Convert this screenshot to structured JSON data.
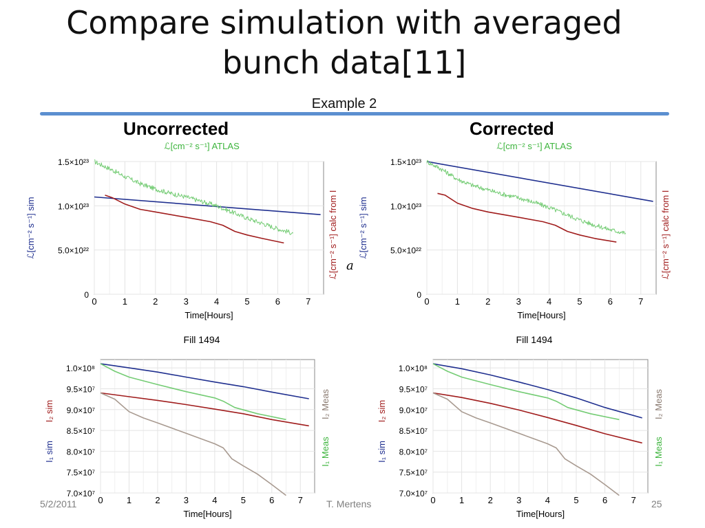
{
  "slide": {
    "title_line1": "Compare simulation with averaged",
    "title_line2": "bunch data[11]",
    "subtitle": "Example 2",
    "left_heading": "Uncorrected",
    "right_heading": "Corrected",
    "footer_date": "5/2/2011",
    "footer_author": "T. Mertens",
    "footer_page": "25",
    "stray_glyph": "a",
    "rule_color": "#5b8fd0"
  },
  "chart_data": [
    {
      "id": "lumi-uncorrected",
      "type": "line",
      "top_label": "ℒ[cm⁻² s⁻¹] ATLAS",
      "left_axis_label": "ℒ[cm⁻² s⁻¹] sim",
      "right_axis_label": "ℒ[cm⁻² s⁻¹] calc from I",
      "xlabel": "Time[Hours]",
      "caption": "Fill 1494",
      "xlim": [
        0,
        7.5
      ],
      "ylim": [
        0,
        1.5e+23
      ],
      "xticks": [
        "0",
        "1",
        "2",
        "3",
        "4",
        "5",
        "6",
        "7"
      ],
      "yticks": [
        {
          "value": 0,
          "label": "0"
        },
        {
          "value": 5e+22,
          "label": "5.0×10²²"
        },
        {
          "value": 1e+23,
          "label": "1.0×10²³"
        },
        {
          "value": 1.5e+23,
          "label": "1.5×10²³"
        }
      ],
      "grid": true,
      "series": [
        {
          "key": "sim",
          "color": "#1f2f8f",
          "noisy": false,
          "x": [
            0,
            7.4
          ],
          "y": [
            1.1e+23,
            9e+22
          ]
        },
        {
          "key": "calc",
          "color": "#a01c1c",
          "noisy": false,
          "x": [
            0.35,
            0.6,
            1.0,
            1.5,
            2.0,
            3.0,
            3.8,
            4.2,
            4.6,
            5.0,
            5.5,
            6.2
          ],
          "y": [
            1.12e+23,
            1.09e+23,
            1.02e+23,
            9.6e+22,
            9.3e+22,
            8.7e+22,
            8.2e+22,
            7.8e+22,
            7.1e+22,
            6.7e+22,
            6.3e+22,
            5.8e+22
          ]
        },
        {
          "key": "atlas",
          "color": "#74cc74",
          "noisy": true,
          "x": [
            0,
            0.5,
            1.0,
            1.5,
            2.0,
            2.5,
            3.0,
            3.5,
            4.0,
            4.5,
            5.0,
            5.5,
            6.0,
            6.5
          ],
          "y": [
            1.5e+23,
            1.42e+23,
            1.33e+23,
            1.25e+23,
            1.19e+23,
            1.14e+23,
            1.1e+23,
            1.05e+23,
            1e+23,
            9.3e+22,
            8.6e+22,
            8e+22,
            7.4e+22,
            6.9e+22
          ]
        }
      ]
    },
    {
      "id": "lumi-corrected",
      "type": "line",
      "top_label": "ℒ[cm⁻² s⁻¹] ATLAS",
      "left_axis_label": "ℒ[cm⁻² s⁻¹] sim",
      "right_axis_label": "ℒ[cm⁻² s⁻¹] calc from I",
      "xlabel": "Time[Hours]",
      "caption": "Fill 1494",
      "xlim": [
        0,
        7.5
      ],
      "ylim": [
        0,
        1.5e+23
      ],
      "xticks": [
        "0",
        "1",
        "2",
        "3",
        "4",
        "5",
        "6",
        "7"
      ],
      "yticks": [
        {
          "value": 0,
          "label": "0"
        },
        {
          "value": 5e+22,
          "label": "5.0×10²²"
        },
        {
          "value": 1e+23,
          "label": "1.0×10²³"
        },
        {
          "value": 1.5e+23,
          "label": "1.5×10²³"
        }
      ],
      "grid": true,
      "series": [
        {
          "key": "sim",
          "color": "#1f2f8f",
          "noisy": false,
          "x": [
            0,
            7.4
          ],
          "y": [
            1.5e+23,
            1.05e+23
          ]
        },
        {
          "key": "calc",
          "color": "#a01c1c",
          "noisy": false,
          "x": [
            0.35,
            0.6,
            1.0,
            1.5,
            2.0,
            3.0,
            3.8,
            4.2,
            4.6,
            5.0,
            5.5,
            6.2
          ],
          "y": [
            1.14e+23,
            1.12e+23,
            1.03e+23,
            9.7e+22,
            9.3e+22,
            8.7e+22,
            8.2e+22,
            7.8e+22,
            7.1e+22,
            6.7e+22,
            6.3e+22,
            5.9e+22
          ]
        },
        {
          "key": "atlas",
          "color": "#74cc74",
          "noisy": true,
          "x": [
            0,
            0.5,
            1.0,
            1.5,
            2.0,
            2.5,
            3.0,
            3.5,
            4.0,
            4.5,
            5.0,
            5.5,
            6.0,
            6.5
          ],
          "y": [
            1.5e+23,
            1.41e+23,
            1.3e+23,
            1.23e+23,
            1.18e+23,
            1.13e+23,
            1.09e+23,
            1.04e+23,
            9.8e+22,
            9.1e+22,
            8.4e+22,
            7.8e+22,
            7.3e+22,
            6.9e+22
          ]
        }
      ]
    },
    {
      "id": "intensity-uncorrected",
      "type": "line",
      "left_axis_label_1": "I₁ sim",
      "left_axis_label_2": "I₂ sim",
      "right_axis_label_1": "I₁ Meas",
      "right_axis_label_2": "I₂ Meas",
      "xlabel": "Time[Hours]",
      "xlim": [
        0,
        7.5
      ],
      "ylim": [
        70000000.0,
        102000000.0
      ],
      "xticks": [
        "0",
        "1",
        "2",
        "3",
        "4",
        "5",
        "6",
        "7"
      ],
      "yticks": [
        {
          "value": 70000000.0,
          "label": "7.0×10⁷"
        },
        {
          "value": 75000000.0,
          "label": "7.5×10⁷"
        },
        {
          "value": 80000000.0,
          "label": "8.0×10⁷"
        },
        {
          "value": 85000000.0,
          "label": "8.5×10⁷"
        },
        {
          "value": 90000000.0,
          "label": "9.0×10⁷"
        },
        {
          "value": 95000000.0,
          "label": "9.5×10⁷"
        },
        {
          "value": 100000000.0,
          "label": "1.0×10⁸"
        }
      ],
      "grid": true,
      "series": [
        {
          "key": "i1sim",
          "color": "#1f2f8f",
          "x": [
            0,
            1,
            2,
            3,
            4,
            5,
            6,
            7.3
          ],
          "y": [
            101000000.0,
            100000000.0,
            99000000.0,
            97800000.0,
            96600000.0,
            95500000.0,
            94200000.0,
            92600000.0
          ]
        },
        {
          "key": "i1meas",
          "color": "#74cc74",
          "x": [
            0,
            0.5,
            1,
            2,
            3,
            4,
            4.3,
            4.7,
            5.5,
            6.5
          ],
          "y": [
            101000000.0,
            99200000.0,
            97800000.0,
            96000000.0,
            94300000.0,
            92800000.0,
            92000000.0,
            90500000.0,
            89000000.0,
            87600000.0
          ]
        },
        {
          "key": "i2sim",
          "color": "#a01c1c",
          "x": [
            0,
            1,
            2,
            3,
            4,
            5,
            6,
            7.3
          ],
          "y": [
            94000000.0,
            93100000.0,
            92200000.0,
            91200000.0,
            90100000.0,
            89000000.0,
            87600000.0,
            86100000.0
          ]
        },
        {
          "key": "i2meas",
          "color": "#a89a90",
          "x": [
            0,
            0.5,
            1,
            1.5,
            2,
            3,
            4,
            4.3,
            4.6,
            5,
            5.5,
            6,
            6.5
          ],
          "y": [
            94000000.0,
            92500000.0,
            89500000.0,
            88000000.0,
            86800000.0,
            84300000.0,
            81800000.0,
            80800000.0,
            78200000.0,
            76500000.0,
            74500000.0,
            72000000.0,
            69400000.0
          ]
        }
      ]
    },
    {
      "id": "intensity-corrected",
      "type": "line",
      "left_axis_label_1": "I₁ sim",
      "left_axis_label_2": "I₂ sim",
      "right_axis_label_1": "I₁ Meas",
      "right_axis_label_2": "I₂ Meas",
      "xlabel": "Time[Hours]",
      "xlim": [
        0,
        7.5
      ],
      "ylim": [
        70000000.0,
        102000000.0
      ],
      "xticks": [
        "0",
        "1",
        "2",
        "3",
        "4",
        "5",
        "6",
        "7"
      ],
      "yticks": [
        {
          "value": 70000000.0,
          "label": "7.0×10⁷"
        },
        {
          "value": 75000000.0,
          "label": "7.5×10⁷"
        },
        {
          "value": 80000000.0,
          "label": "8.0×10⁷"
        },
        {
          "value": 85000000.0,
          "label": "8.5×10⁷"
        },
        {
          "value": 90000000.0,
          "label": "9.0×10⁷"
        },
        {
          "value": 95000000.0,
          "label": "9.5×10⁷"
        },
        {
          "value": 100000000.0,
          "label": "1.0×10⁸"
        }
      ],
      "grid": true,
      "series": [
        {
          "key": "i1sim",
          "color": "#1f2f8f",
          "x": [
            0,
            1,
            2,
            3,
            4,
            5,
            6,
            7.3
          ],
          "y": [
            101000000.0,
            99800000.0,
            98300000.0,
            96600000.0,
            94800000.0,
            92800000.0,
            90500000.0,
            88000000.0
          ]
        },
        {
          "key": "i1meas",
          "color": "#74cc74",
          "x": [
            0,
            0.5,
            1,
            2,
            3,
            4,
            4.3,
            4.7,
            5.5,
            6.5
          ],
          "y": [
            101000000.0,
            99200000.0,
            97800000.0,
            96000000.0,
            94300000.0,
            92800000.0,
            92000000.0,
            90500000.0,
            89000000.0,
            87600000.0
          ]
        },
        {
          "key": "i2sim",
          "color": "#a01c1c",
          "x": [
            0,
            1,
            2,
            3,
            4,
            5,
            6,
            7.3
          ],
          "y": [
            94000000.0,
            92900000.0,
            91500000.0,
            89900000.0,
            88100000.0,
            86200000.0,
            84200000.0,
            82000000.0
          ]
        },
        {
          "key": "i2meas",
          "color": "#a89a90",
          "x": [
            0,
            0.5,
            1,
            1.5,
            2,
            3,
            4,
            4.3,
            4.6,
            5,
            5.5,
            6,
            6.5
          ],
          "y": [
            94000000.0,
            92500000.0,
            89500000.0,
            88000000.0,
            86800000.0,
            84300000.0,
            81800000.0,
            80800000.0,
            78200000.0,
            76500000.0,
            74500000.0,
            72000000.0,
            69400000.0
          ]
        }
      ]
    }
  ]
}
